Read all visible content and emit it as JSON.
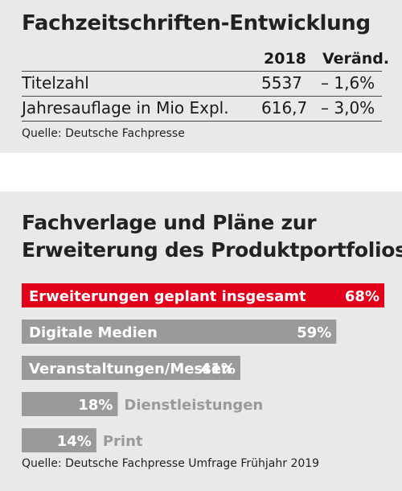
{
  "table_section": {
    "title": "Fachzeitschriften-Entwicklung",
    "columns": [
      "2018",
      "Veränd."
    ],
    "rows": [
      {
        "label": "Titelzahl",
        "value": "5537",
        "change": "– 1,6%"
      },
      {
        "label": "Jahresauflage in Mio Expl.",
        "value": "616,7",
        "change": "– 3,0%"
      }
    ],
    "source": "Quelle: Deutsche Fachpresse"
  },
  "chart_section": {
    "title_line1": "Fachverlage und Pläne zur",
    "title_line2": "Erweiterung des Produktportfolios",
    "source": "Quelle: Deutsche Fachpresse Umfrage Frühjahr 2019"
  },
  "chart_data": {
    "type": "bar",
    "orientation": "horizontal",
    "categories": [
      "Erweiterungen geplant insgesamt",
      "Digitale Medien",
      "Veranstaltungen/Messen",
      "Dienstleistungen",
      "Print"
    ],
    "values": [
      68,
      59,
      41,
      18,
      14
    ],
    "value_labels": [
      "68%",
      "59%",
      "41%",
      "18%",
      "14%"
    ],
    "colors": {
      "highlight": "#e3001b",
      "bar": "#9a9a9a",
      "outside_text": "#9a9a9a"
    },
    "xlim": [
      0,
      68
    ]
  }
}
